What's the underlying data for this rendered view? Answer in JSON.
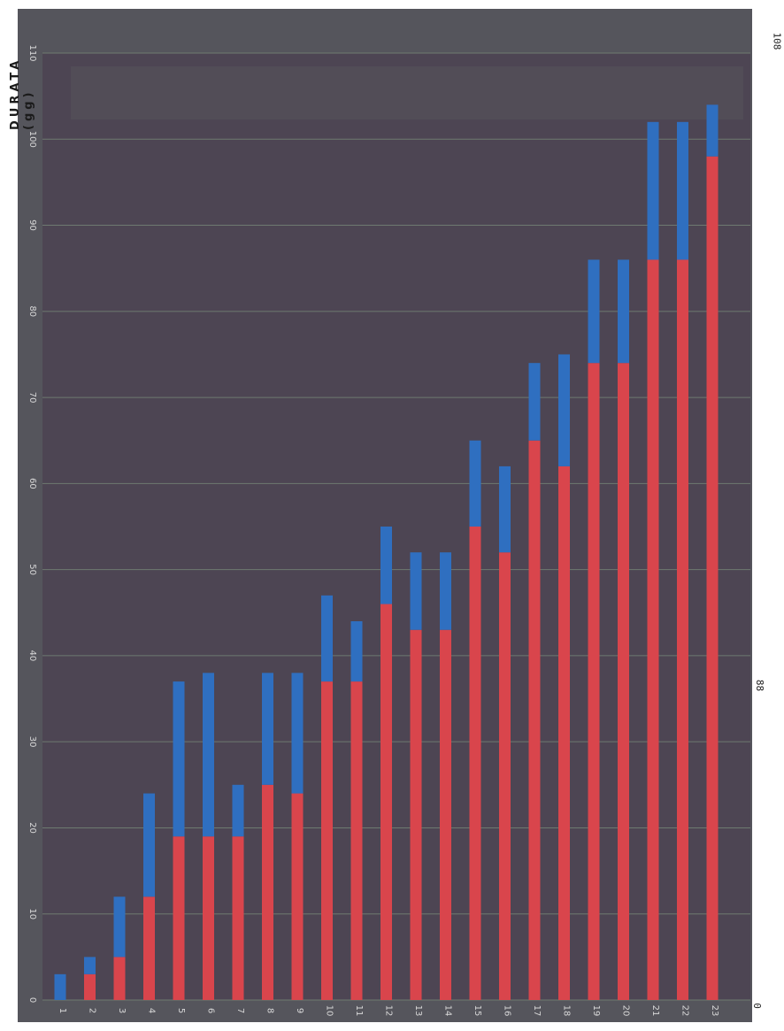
{
  "chart_data": {
    "type": "bar",
    "stacked": true,
    "orientation": "vertical",
    "ylabel": "DURATA (gg)",
    "ylim": [
      0,
      110
    ],
    "yticks": [
      0,
      10,
      20,
      30,
      40,
      50,
      60,
      70,
      80,
      90,
      100,
      110
    ],
    "grid": true,
    "categories": [
      "1",
      "2",
      "3",
      "4",
      "5",
      "6",
      "7",
      "8",
      "9",
      "10",
      "11",
      "12",
      "13",
      "14",
      "15",
      "16",
      "17",
      "18",
      "19",
      "20",
      "21",
      "22",
      "23"
    ],
    "series": [
      {
        "color": "#d9454c",
        "values": [
          0,
          3,
          5,
          12,
          19,
          19,
          19,
          25,
          24,
          37,
          37,
          46,
          43,
          43,
          55,
          52,
          65,
          62,
          74,
          74,
          86,
          86,
          98
        ]
      },
      {
        "color": "#2f6fc0",
        "values": [
          3,
          2,
          7,
          12,
          18,
          19,
          6,
          13,
          14,
          10,
          7,
          9,
          9,
          9,
          10,
          10,
          9,
          13,
          12,
          12,
          16,
          16,
          6
        ]
      }
    ]
  },
  "annotations": {
    "right_top": "108",
    "right_mid": "88",
    "right_bottom": "0"
  },
  "colors": {
    "plot_background": "#4c4452",
    "frame_background": "#5a5a60",
    "grid": "#6e7a70"
  }
}
